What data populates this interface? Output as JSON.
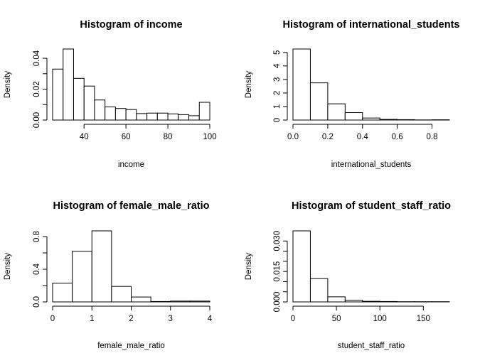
{
  "chart_data": [
    {
      "type": "bar",
      "title": "Histogram of income",
      "xlabel": "income",
      "ylabel": "Density",
      "breaks": [
        25,
        30,
        35,
        40,
        45,
        50,
        55,
        60,
        65,
        70,
        75,
        80,
        85,
        90,
        95,
        100
      ],
      "values": [
        0.033,
        0.046,
        0.027,
        0.022,
        0.013,
        0.0085,
        0.0075,
        0.0068,
        0.0042,
        0.0045,
        0.0045,
        0.004,
        0.0035,
        0.0028,
        0.0115
      ],
      "xlim": [
        25,
        100
      ],
      "ylim": [
        0,
        0.046
      ],
      "xticks": [
        40,
        60,
        80,
        100
      ],
      "xtick_labels": [
        "40",
        "60",
        "80",
        "100"
      ],
      "yticks": [
        0,
        0.01,
        0.02,
        0.03,
        0.04
      ],
      "ytick_labels": [
        "0.00",
        "",
        "0.02",
        "",
        "0.04"
      ]
    },
    {
      "type": "bar",
      "title": "Histogram of international_students",
      "xlabel": "international_students",
      "ylabel": "Density",
      "breaks": [
        0,
        0.1,
        0.2,
        0.3,
        0.4,
        0.5,
        0.6,
        0.7,
        0.8,
        0.9
      ],
      "values": [
        5.25,
        2.75,
        1.2,
        0.55,
        0.15,
        0.05,
        0.03,
        0.01,
        0.02
      ],
      "xlim": [
        0,
        0.9
      ],
      "ylim": [
        0,
        5.25
      ],
      "xticks": [
        0,
        0.2,
        0.4,
        0.6,
        0.8
      ],
      "xtick_labels": [
        "0.0",
        "0.2",
        "0.4",
        "0.6",
        "0.8"
      ],
      "yticks": [
        0,
        1,
        2,
        3,
        4,
        5
      ],
      "ytick_labels": [
        "0",
        "1",
        "2",
        "3",
        "4",
        "5"
      ]
    },
    {
      "type": "bar",
      "title": "Histogram of female_male_ratio",
      "xlabel": "female_male_ratio",
      "ylabel": "Density",
      "breaks": [
        0,
        0.5,
        1,
        1.5,
        2,
        2.5,
        3,
        3.5,
        4
      ],
      "values": [
        0.23,
        0.62,
        0.87,
        0.19,
        0.06,
        0.005,
        0.01,
        0.01
      ],
      "xlim": [
        0,
        4
      ],
      "ylim": [
        0,
        0.87
      ],
      "xticks": [
        0,
        1,
        2,
        3,
        4
      ],
      "xtick_labels": [
        "0",
        "1",
        "2",
        "3",
        "4"
      ],
      "yticks": [
        0,
        0.2,
        0.4,
        0.6,
        0.8
      ],
      "ytick_labels": [
        "0.0",
        "",
        "0.4",
        "",
        "0.8"
      ]
    },
    {
      "type": "bar",
      "title": "Histogram of student_staff_ratio",
      "xlabel": "student_staff_ratio",
      "ylabel": "Density",
      "breaks": [
        0,
        20,
        40,
        60,
        80,
        100,
        120,
        140,
        160,
        180
      ],
      "values": [
        0.035,
        0.0115,
        0.0025,
        0.0008,
        0.0003,
        0.0002,
        0.0001,
        0.0001,
        0.0001
      ],
      "xlim": [
        0,
        180
      ],
      "ylim": [
        0,
        0.035
      ],
      "xticks": [
        0,
        50,
        100,
        150
      ],
      "xtick_labels": [
        "0",
        "50",
        "100",
        "150"
      ],
      "yticks": [
        0,
        0.005,
        0.01,
        0.015,
        0.02,
        0.025,
        0.03
      ],
      "ytick_labels": [
        "0.000",
        "",
        "",
        "0.015",
        "",
        "",
        "0.030"
      ]
    }
  ]
}
